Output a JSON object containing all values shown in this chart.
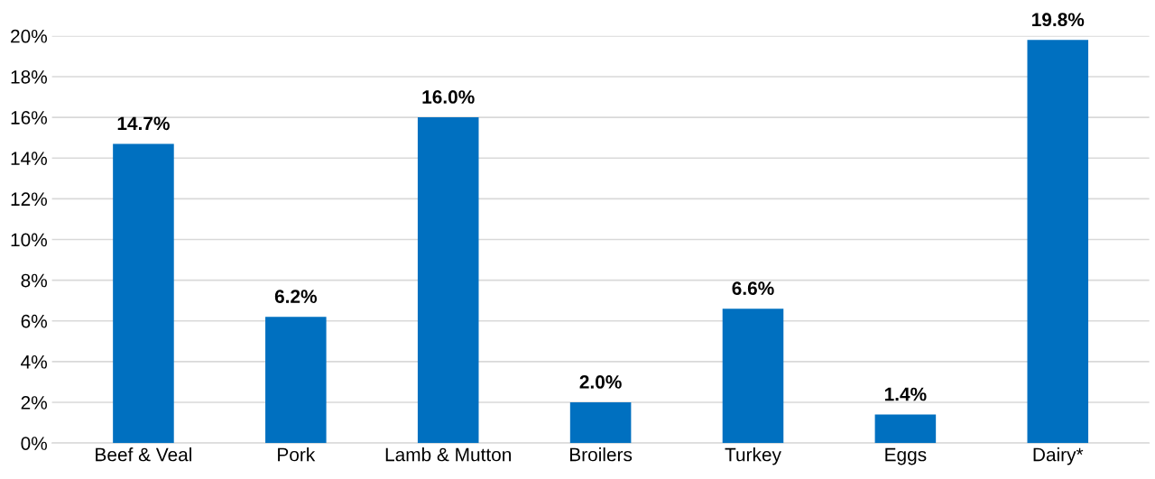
{
  "chart_data": {
    "type": "bar",
    "categories": [
      "Beef & Veal",
      "Pork",
      "Lamb & Mutton",
      "Broilers",
      "Turkey",
      "Eggs",
      "Dairy*"
    ],
    "values": [
      14.7,
      6.2,
      16.0,
      2.0,
      6.6,
      1.4,
      19.8
    ],
    "value_labels": [
      "14.7%",
      "6.2%",
      "16.0%",
      "2.0%",
      "6.6%",
      "1.4%",
      "19.8%"
    ],
    "color": "#0070c0",
    "ylim": [
      0,
      20
    ],
    "yticks": [
      {
        "value": 0,
        "label": "0%"
      },
      {
        "value": 2,
        "label": "2%"
      },
      {
        "value": 4,
        "label": "4%"
      },
      {
        "value": 6,
        "label": "6%"
      },
      {
        "value": 8,
        "label": "8%"
      },
      {
        "value": 10,
        "label": "10%"
      },
      {
        "value": 12,
        "label": "12%"
      },
      {
        "value": 14,
        "label": "14%"
      },
      {
        "value": 16,
        "label": "16%"
      },
      {
        "value": 18,
        "label": "18%"
      },
      {
        "value": 20,
        "label": "20%"
      }
    ],
    "grid": "y"
  }
}
